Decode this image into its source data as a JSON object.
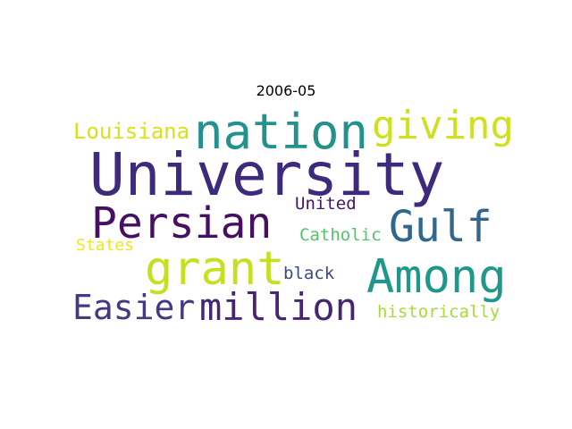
{
  "title": "2006-05",
  "words": [
    {
      "text": "University",
      "color": "#3e2a7d"
    },
    {
      "text": "nation",
      "color": "#23928c"
    },
    {
      "text": "giving",
      "color": "#d0e11c"
    },
    {
      "text": "Louisiana",
      "color": "#d9e219"
    },
    {
      "text": "Persian",
      "color": "#470f62"
    },
    {
      "text": "Gulf",
      "color": "#31668e"
    },
    {
      "text": "United",
      "color": "#471567"
    },
    {
      "text": "Catholic",
      "color": "#52c569"
    },
    {
      "text": "States",
      "color": "#f2e51c"
    },
    {
      "text": "grant",
      "color": "#c5e021"
    },
    {
      "text": "Among",
      "color": "#1f978b"
    },
    {
      "text": "black",
      "color": "#3f4788"
    },
    {
      "text": "Easier",
      "color": "#443983"
    },
    {
      "text": "million",
      "color": "#482475"
    },
    {
      "text": "historically",
      "color": "#a8db34"
    }
  ]
}
